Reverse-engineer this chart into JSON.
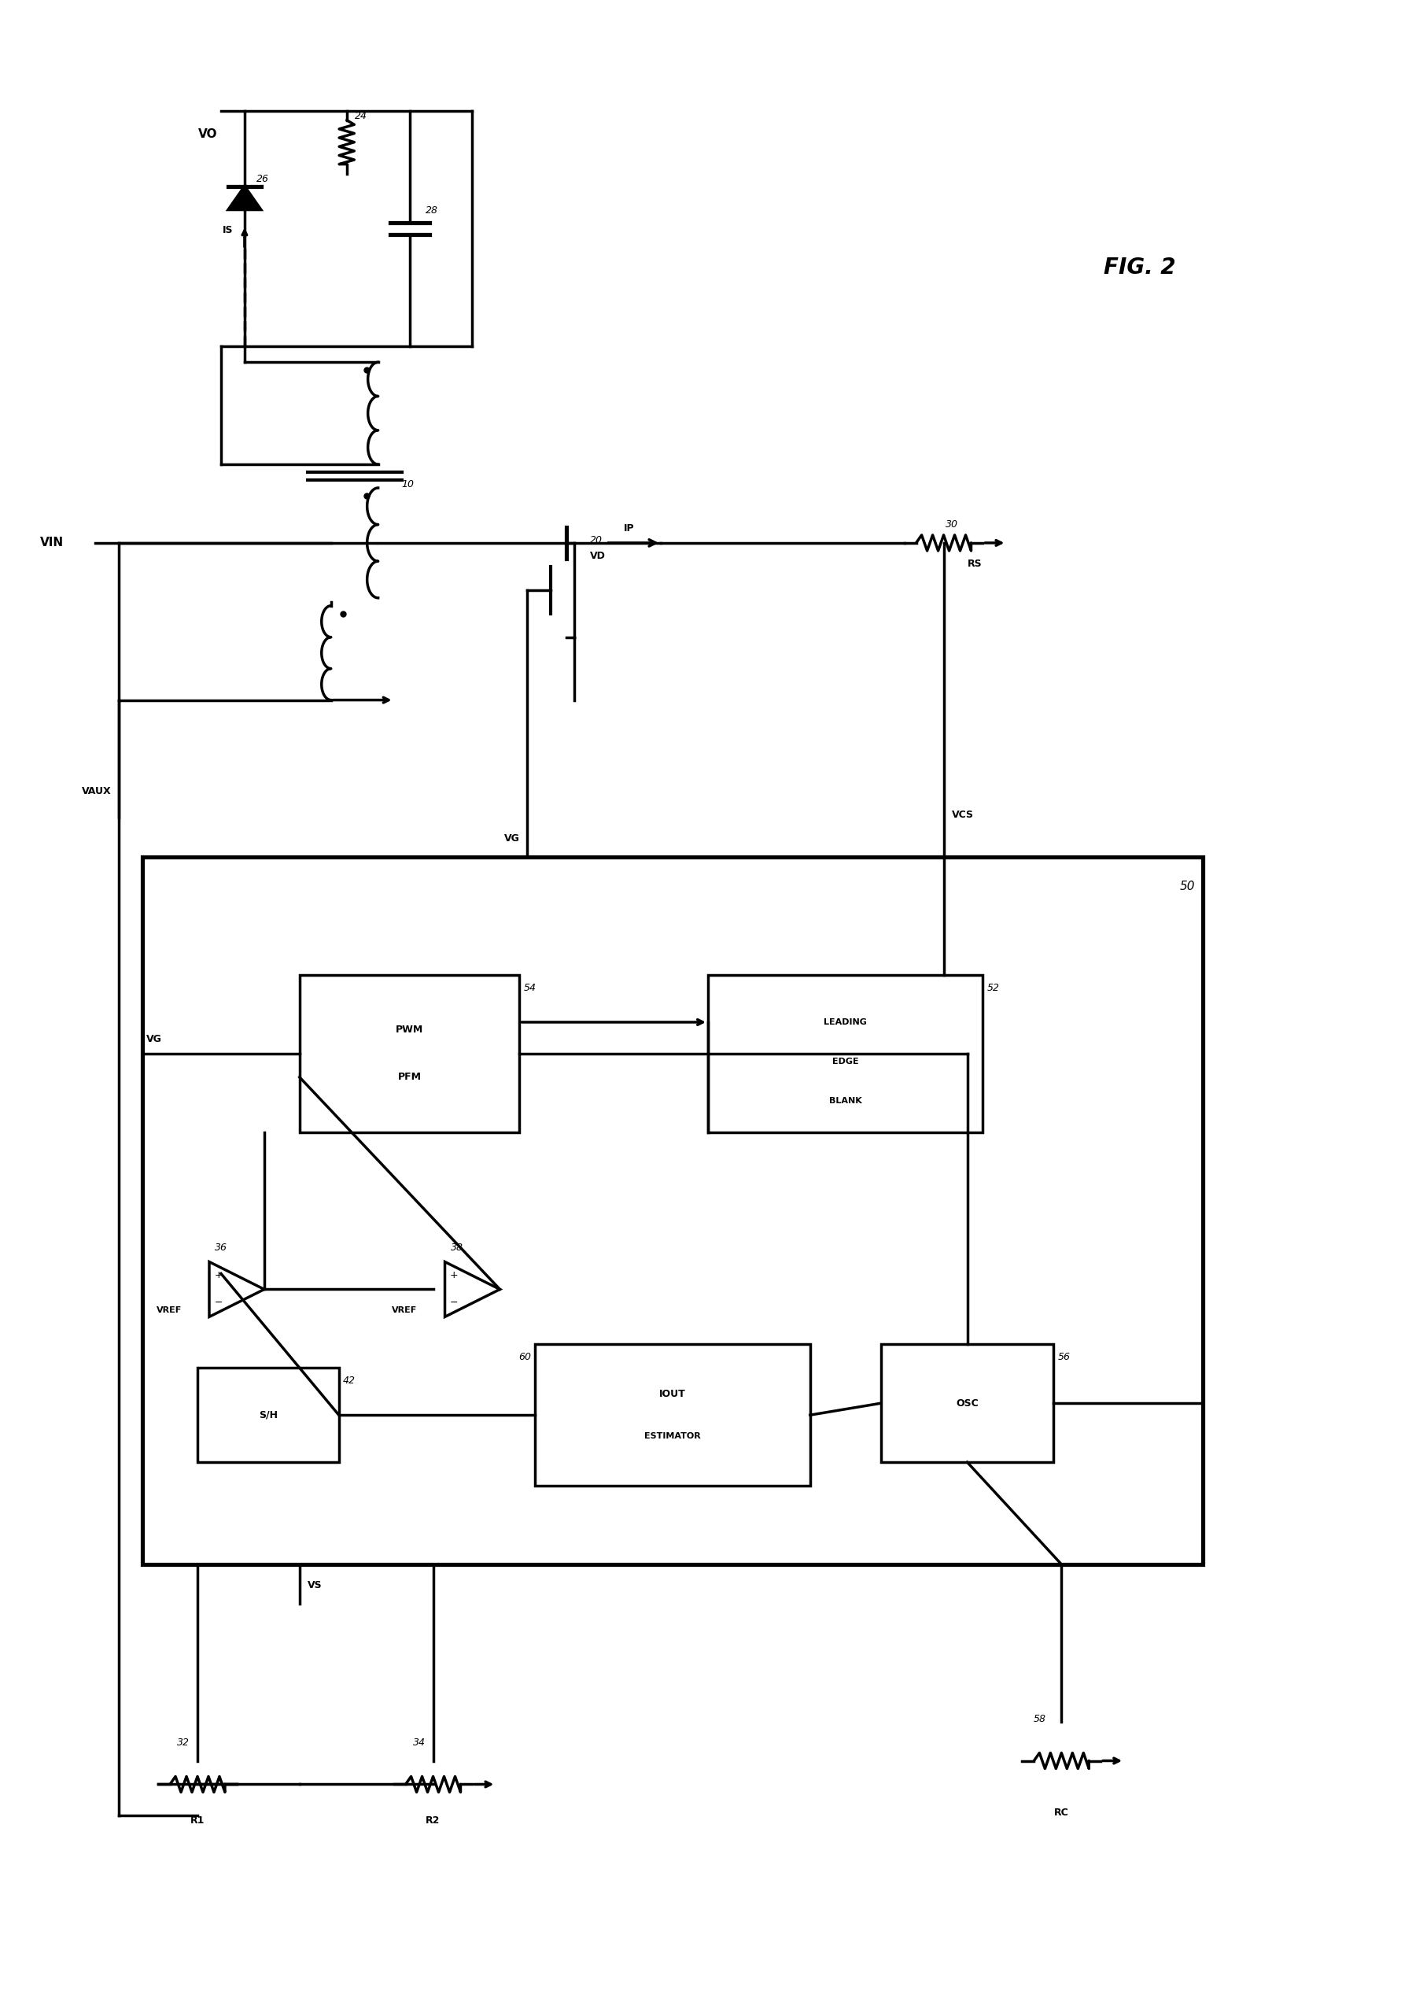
{
  "fig_label": "FIG. 2",
  "background_color": "#ffffff",
  "line_color": "#000000",
  "line_width": 3.5,
  "component_labels": {
    "R_out": "24",
    "C_out": "28",
    "D_out": "26",
    "transformer": "10",
    "MOSFET": "20",
    "RS": "30",
    "R1": "32",
    "R2": "34",
    "VREF_amp1": "36",
    "amp2": "38",
    "SH": "42",
    "LEB": "52",
    "PWM_PFM": "54",
    "OSC": "56",
    "RC": "58",
    "IOUT_EST": "60",
    "IC": "50"
  },
  "node_labels": {
    "VO": "VO",
    "VIN": "VIN",
    "VAUX": "VAUX",
    "VG": "VG",
    "VD": "VD",
    "IP": "IP",
    "IS": "IS",
    "VCS": "VCS",
    "VREF": "VREF",
    "VS": "VS",
    "RS_label": "RS",
    "R1_label": "R1",
    "R2_label": "R2",
    "RC_label": "RC"
  }
}
